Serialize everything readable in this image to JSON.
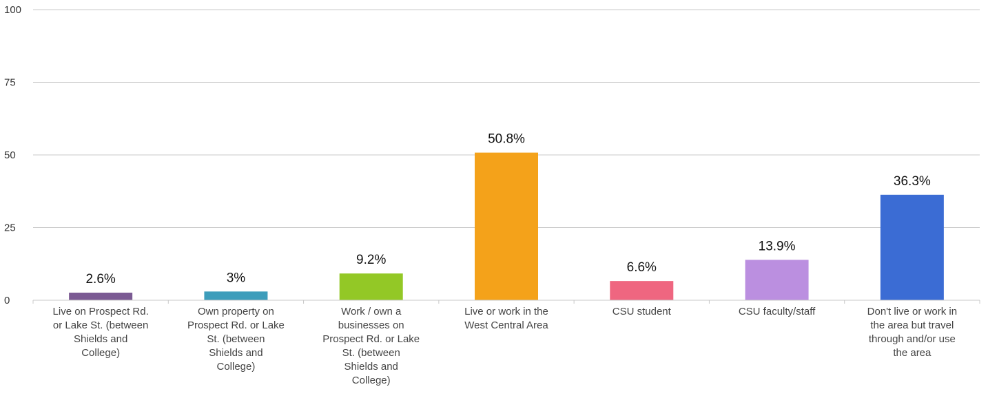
{
  "chart_data": {
    "type": "bar",
    "title": "",
    "xlabel": "",
    "ylabel": "",
    "ylim": [
      0,
      100
    ],
    "yticks": [
      0,
      25,
      50,
      75,
      100
    ],
    "grid": true,
    "legend": "none",
    "categories": [
      [
        "Live on Prospect Rd.",
        "or Lake St. (between",
        "Shields and",
        "College)"
      ],
      [
        "Own property on",
        "Prospect Rd. or Lake",
        "St. (between",
        "Shields and",
        "College)"
      ],
      [
        "Work / own a",
        "businesses on",
        "Prospect Rd. or Lake",
        "St. (between",
        "Shields and",
        "College)"
      ],
      [
        "Live or work in the",
        "West Central Area"
      ],
      [
        "CSU student"
      ],
      [
        "CSU faculty/staff"
      ],
      [
        "Don't live or work in",
        "the area but travel",
        "through and/or use",
        "the area"
      ]
    ],
    "values": [
      2.6,
      3,
      9.2,
      50.8,
      6.6,
      13.9,
      36.3
    ],
    "data_labels": [
      "2.6%",
      "3%",
      "9.2%",
      "50.8%",
      "6.6%",
      "13.9%",
      "36.3%"
    ],
    "colors": [
      "#7b5a93",
      "#3d9dbb",
      "#93c826",
      "#f4a21a",
      "#ef6680",
      "#bb8fe0",
      "#3b6cd4"
    ]
  }
}
